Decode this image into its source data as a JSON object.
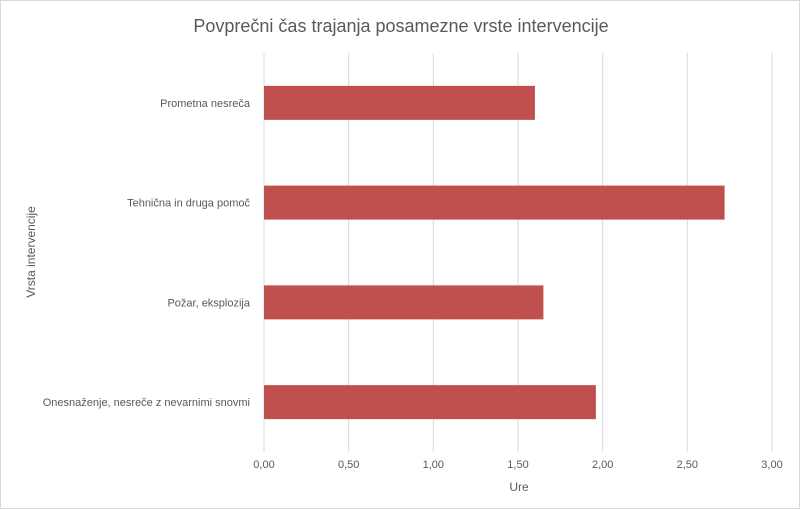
{
  "chart_data": {
    "type": "bar",
    "orientation": "horizontal",
    "title": "Povprečni čas trajanja posamezne vrste intervencije",
    "xlabel": "Ure",
    "ylabel": "Vrsta intervencije",
    "categories": [
      "Prometna nesreča",
      "Tehnična in druga pomoč",
      "Požar, eksplozija",
      "Onesnaženje, nesreče z nevarnimi snovmi"
    ],
    "values": [
      1.6,
      2.72,
      1.65,
      1.96
    ],
    "xlim": [
      0,
      3
    ],
    "xticks": [
      "0,00",
      "0,50",
      "1,00",
      "1,50",
      "2,00",
      "2,50",
      "3,00"
    ],
    "xtick_values": [
      0,
      0.5,
      1,
      1.5,
      2,
      2.5,
      3
    ],
    "grid": true,
    "legend": "none",
    "bar_color": "#c0504d"
  }
}
